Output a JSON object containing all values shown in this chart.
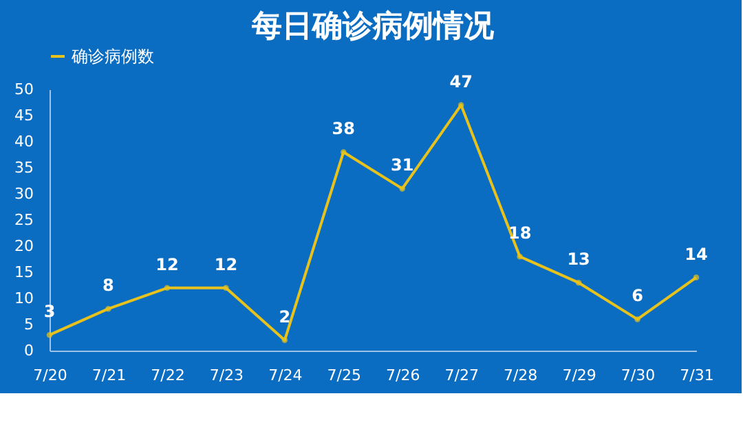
{
  "chart_data": {
    "type": "line",
    "title": "每日确诊病例情况",
    "categories": [
      "7/20",
      "7/21",
      "7/22",
      "7/23",
      "7/24",
      "7/25",
      "7/26",
      "7/27",
      "7/28",
      "7/29",
      "7/30",
      "7/31"
    ],
    "series": [
      {
        "name": "确诊病例数",
        "color": "#e8c21c",
        "values": [
          3,
          8,
          12,
          12,
          2,
          38,
          31,
          47,
          18,
          13,
          6,
          14
        ]
      }
    ],
    "ylim": [
      0,
      50
    ],
    "yticks": [
      0,
      5,
      10,
      15,
      20,
      25,
      30,
      35,
      40,
      45,
      50
    ],
    "grid": false,
    "legend": "top",
    "marker": "circle",
    "line_style": "solid",
    "data_labels": true
  }
}
